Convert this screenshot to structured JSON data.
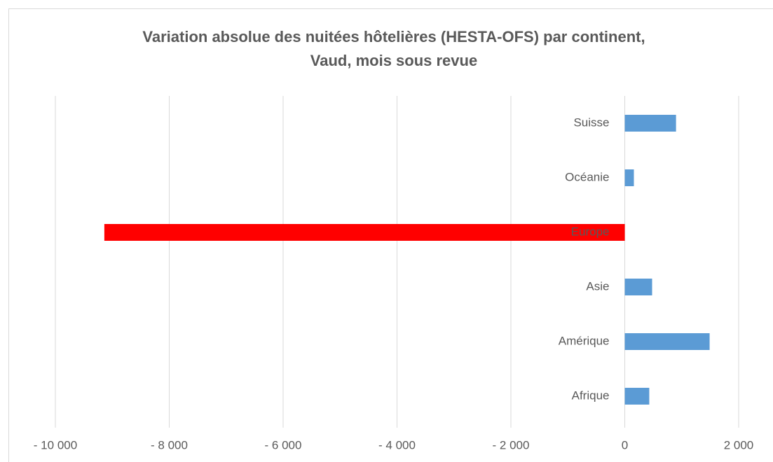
{
  "chart_data": {
    "type": "hbar",
    "title": [
      "Variation absolue des nuitées hôtelières (HESTA-OFS) par continent,",
      "Vaud, mois sous revue"
    ],
    "categories": [
      "Suisse",
      "Océanie",
      "Europe",
      "Asie",
      "Amérique",
      "Afrique"
    ],
    "values": [
      900,
      160,
      -9140,
      480,
      1490,
      430
    ],
    "colors": [
      "#5b9bd5",
      "#5b9bd5",
      "#ff0000",
      "#5b9bd5",
      "#5b9bd5",
      "#5b9bd5"
    ],
    "xlim": [
      -10000,
      2000
    ],
    "xticks": [
      {
        "value": -10000,
        "label": "- 10 000"
      },
      {
        "value": -8000,
        "label": "- 8 000"
      },
      {
        "value": -6000,
        "label": "- 6 000"
      },
      {
        "value": -4000,
        "label": "- 4 000"
      },
      {
        "value": -2000,
        "label": "- 2 000"
      },
      0,
      {
        "value": 2000,
        "label": "2 000"
      }
    ],
    "grid": true
  }
}
